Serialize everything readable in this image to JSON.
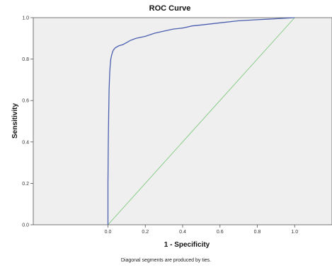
{
  "chart_data": {
    "type": "line",
    "title": "ROC Curve",
    "xlabel": "1 - Specificity",
    "ylabel": "Sensitivity",
    "footnote": "Diagonal segments are produced by ties.",
    "xlim": [
      -0.4,
      1.2
    ],
    "ylim": [
      0,
      1
    ],
    "xticks": [
      "0.0",
      "0.2",
      "0.4",
      "0.6",
      "0.8",
      "1.0"
    ],
    "yticks": [
      "0.0",
      "0.2",
      "0.4",
      "0.6",
      "0.8",
      "1.0"
    ],
    "grid": false,
    "series": [
      {
        "color": "#4a5fb0",
        "x": [
          0.0,
          0.0,
          0.002,
          0.004,
          0.006,
          0.008,
          0.01,
          0.012,
          0.015,
          0.02,
          0.025,
          0.03,
          0.04,
          0.05,
          0.06,
          0.08,
          0.1,
          0.12,
          0.15,
          0.2,
          0.25,
          0.3,
          0.35,
          0.4,
          0.45,
          0.5,
          0.55,
          0.6,
          0.7,
          0.8,
          0.9,
          1.0
        ],
        "y": [
          0.0,
          0.2,
          0.4,
          0.55,
          0.65,
          0.7,
          0.74,
          0.77,
          0.8,
          0.82,
          0.835,
          0.845,
          0.855,
          0.86,
          0.865,
          0.87,
          0.88,
          0.89,
          0.9,
          0.91,
          0.925,
          0.935,
          0.945,
          0.95,
          0.96,
          0.965,
          0.97,
          0.975,
          0.985,
          0.99,
          0.995,
          1.0
        ]
      },
      {
        "color": "#7dc87d",
        "x": [
          0,
          1
        ],
        "y": [
          0,
          1
        ]
      }
    ],
    "colors": {
      "plot_background": "#efefef",
      "roc_line": "#4a5fb0",
      "diagonal": "#7dc87d"
    }
  }
}
